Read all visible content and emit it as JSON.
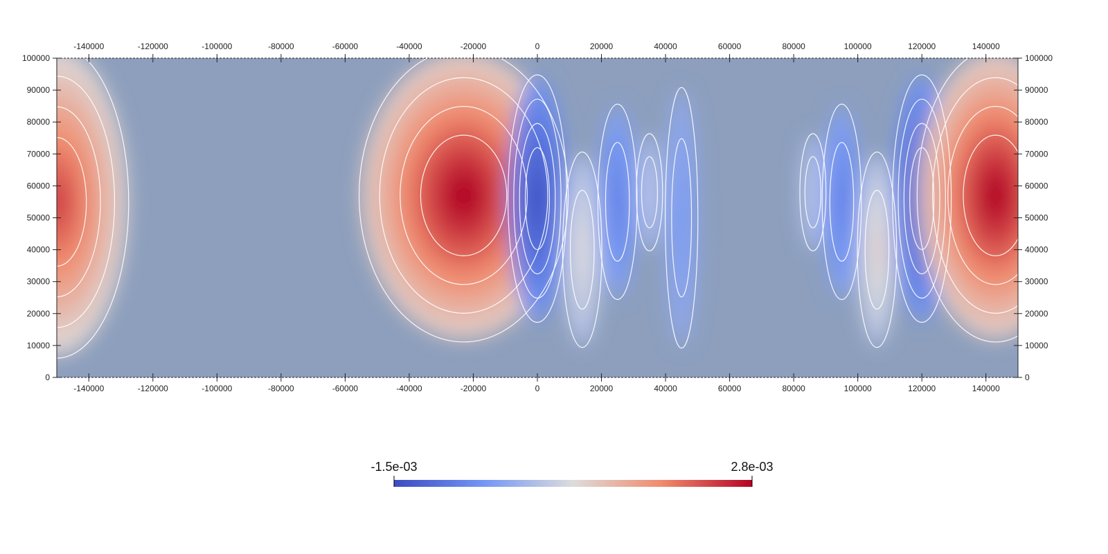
{
  "chart_data": {
    "type": "heatmap",
    "title": "",
    "xlabel": "",
    "ylabel": "",
    "xlim": [
      -150000,
      150000
    ],
    "ylim": [
      0,
      100000
    ],
    "x_ticks": [
      -140000,
      -120000,
      -100000,
      -80000,
      -60000,
      -40000,
      -20000,
      0,
      20000,
      40000,
      60000,
      80000,
      100000,
      120000,
      140000
    ],
    "y_ticks": [
      0,
      10000,
      20000,
      30000,
      40000,
      50000,
      60000,
      70000,
      80000,
      90000,
      100000
    ],
    "colormap": "coolwarm",
    "colors": {
      "low": "#3b4cc0",
      "mid": "#dddddd",
      "high": "#b40426",
      "background": "#8d9fbd",
      "contour": "#ffffff"
    },
    "color_range": [
      -0.0015,
      0.0028
    ],
    "colorbar": {
      "min_label": "-1.5e-03",
      "max_label": "2.8e-03",
      "orientation": "horizontal"
    },
    "features": [
      {
        "x": -150000,
        "y": 55000,
        "value": 0.0023,
        "rx": 22000,
        "ry": 48000
      },
      {
        "x": -23000,
        "y": 57000,
        "value": 0.0028,
        "rx": 32000,
        "ry": 45000
      },
      {
        "x": 0,
        "y": 56000,
        "value": -0.0015,
        "rx": 9000,
        "ry": 38000
      },
      {
        "x": 14000,
        "y": 40000,
        "value": 0.0007,
        "rx": 6000,
        "ry": 30000
      },
      {
        "x": 25000,
        "y": 55000,
        "value": -0.0008,
        "rx": 6000,
        "ry": 30000
      },
      {
        "x": 35000,
        "y": 58000,
        "value": 0.0003,
        "rx": 4000,
        "ry": 18000
      },
      {
        "x": 45000,
        "y": 50000,
        "value": -0.0004,
        "rx": 5000,
        "ry": 40000
      },
      {
        "x": 86000,
        "y": 58000,
        "value": 0.0003,
        "rx": 4000,
        "ry": 18000
      },
      {
        "x": 95000,
        "y": 55000,
        "value": -0.0008,
        "rx": 6000,
        "ry": 30000
      },
      {
        "x": 106000,
        "y": 40000,
        "value": 0.0009,
        "rx": 6000,
        "ry": 30000
      },
      {
        "x": 120000,
        "y": 56000,
        "value": -0.0015,
        "rx": 9000,
        "ry": 38000
      },
      {
        "x": 143000,
        "y": 57000,
        "value": 0.0028,
        "rx": 24000,
        "ry": 45000
      }
    ]
  }
}
